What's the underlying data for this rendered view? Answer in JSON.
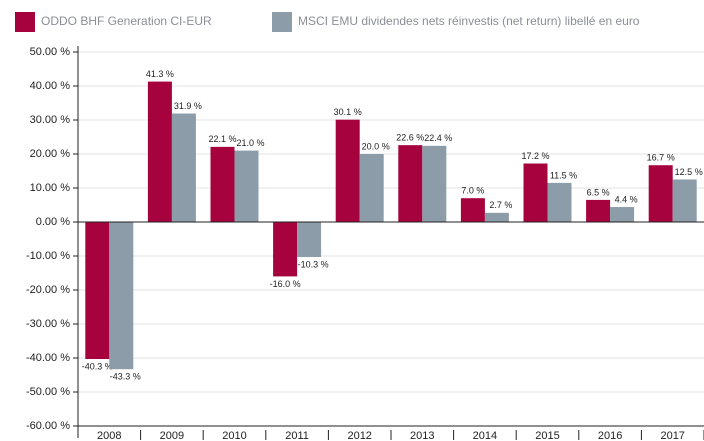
{
  "chart_data": {
    "type": "bar",
    "categories": [
      "2008",
      "2009",
      "2010",
      "2011",
      "2012",
      "2013",
      "2014",
      "2015",
      "2016",
      "2017"
    ],
    "series": [
      {
        "name": "ODDO BHF Generation CI-EUR",
        "color": "#a6023d",
        "values": [
          -40.3,
          41.3,
          22.1,
          -16.0,
          30.1,
          22.6,
          7.0,
          17.2,
          6.5,
          16.7
        ],
        "value_labels": [
          "-40.3 %",
          "41.3 %",
          "22.1 %",
          "-16.0 %",
          "30.1 %",
          "22.6 %",
          "7.0 %",
          "17.2 %",
          "6.5 %",
          "16.7 %"
        ]
      },
      {
        "name": "MSCI EMU dividendes nets réinvestis (net return) libellé en euro",
        "color": "#8c9ca8",
        "values": [
          -43.3,
          31.9,
          21.0,
          -10.3,
          20.0,
          22.4,
          2.7,
          11.5,
          4.4,
          12.5
        ],
        "value_labels": [
          "-43.3 %",
          "31.9 %",
          "21.0 %",
          "-10.3 %",
          "20.0 %",
          "22.4 %",
          "2.7 %",
          "11.5 %",
          "4.4 %",
          "12.5 %"
        ]
      }
    ],
    "ylim": [
      -60,
      50
    ],
    "yticks": [
      {
        "value": -60,
        "label": "-60.00 %"
      },
      {
        "value": -50,
        "label": "-50.00 %"
      },
      {
        "value": -40,
        "label": "-40.00 %"
      },
      {
        "value": -30,
        "label": "-30.00 %"
      },
      {
        "value": -20,
        "label": "-20.00 %"
      },
      {
        "value": -10,
        "label": "-10.00 %"
      },
      {
        "value": 0,
        "label": "0.00 %"
      },
      {
        "value": 10,
        "label": "10.00 %"
      },
      {
        "value": 20,
        "label": "20.00 %"
      },
      {
        "value": 30,
        "label": "30.00 %"
      },
      {
        "value": 40,
        "label": "40.00 %"
      },
      {
        "value": 50,
        "label": "50.00 %"
      }
    ],
    "grid": true,
    "legend": "top"
  }
}
